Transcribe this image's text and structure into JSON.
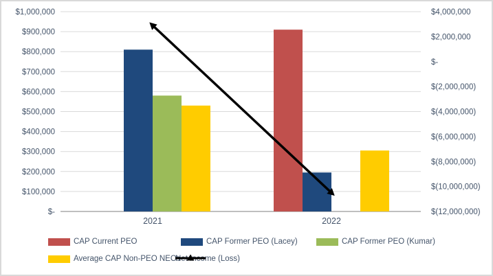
{
  "chart_data": {
    "type": "combo-bar-line",
    "title": "",
    "categories": [
      "2021",
      "2022"
    ],
    "bar_series": [
      {
        "name": "CAP Current PEO",
        "color": "#C0504D",
        "axis": "left",
        "values": [
          null,
          910000
        ]
      },
      {
        "name": "CAP Former PEO (Lacey)",
        "color": "#1F497D",
        "axis": "left",
        "values": [
          810000,
          195000
        ]
      },
      {
        "name": "CAP Former PEO (Kumar)",
        "color": "#9BBB59",
        "axis": "left",
        "values": [
          580000,
          null
        ]
      },
      {
        "name": "Average CAP Non-PEO NEOs",
        "color": "#FFCC00",
        "axis": "left",
        "values": [
          530000,
          305000
        ]
      }
    ],
    "line_series": {
      "name": "Net Income (Loss)",
      "color": "#000000",
      "axis": "right",
      "marker": "triangle",
      "values": [
        2900000,
        -10500000
      ]
    },
    "left_axis": {
      "min": 0,
      "max": 1000000,
      "step": 100000,
      "tick_labels": [
        "$1,000,000",
        "$900,000",
        "$800,000",
        "$700,000",
        "$600,000",
        "$500,000",
        "$400,000",
        "$300,000",
        "$200,000",
        "$100,000",
        "$-"
      ]
    },
    "right_axis": {
      "min": -12000000,
      "max": 4000000,
      "step": 2000000,
      "tick_labels": [
        "$4,000,000",
        "$2,000,000",
        "$-",
        "$(2,000,000)",
        "$(4,000,000)",
        "$(6,000,000)",
        "$(8,000,000)",
        "$(10,000,000)",
        "$(12,000,000)"
      ]
    },
    "grid": true,
    "legend_position": "bottom",
    "legend_rows": [
      [
        "CAP Current PEO",
        "CAP Former PEO (Lacey)",
        "CAP Former PEO (Kumar)"
      ],
      [
        "Average CAP Non-PEO NEOs",
        "Net Income (Loss)"
      ]
    ],
    "colors": {
      "text": "#44546A",
      "gridline": "#D9D9D9",
      "axis_line": "#BFBFBF",
      "line_series": "#000000",
      "background": "#FFFFFF",
      "border": "#D9D9D9"
    }
  }
}
